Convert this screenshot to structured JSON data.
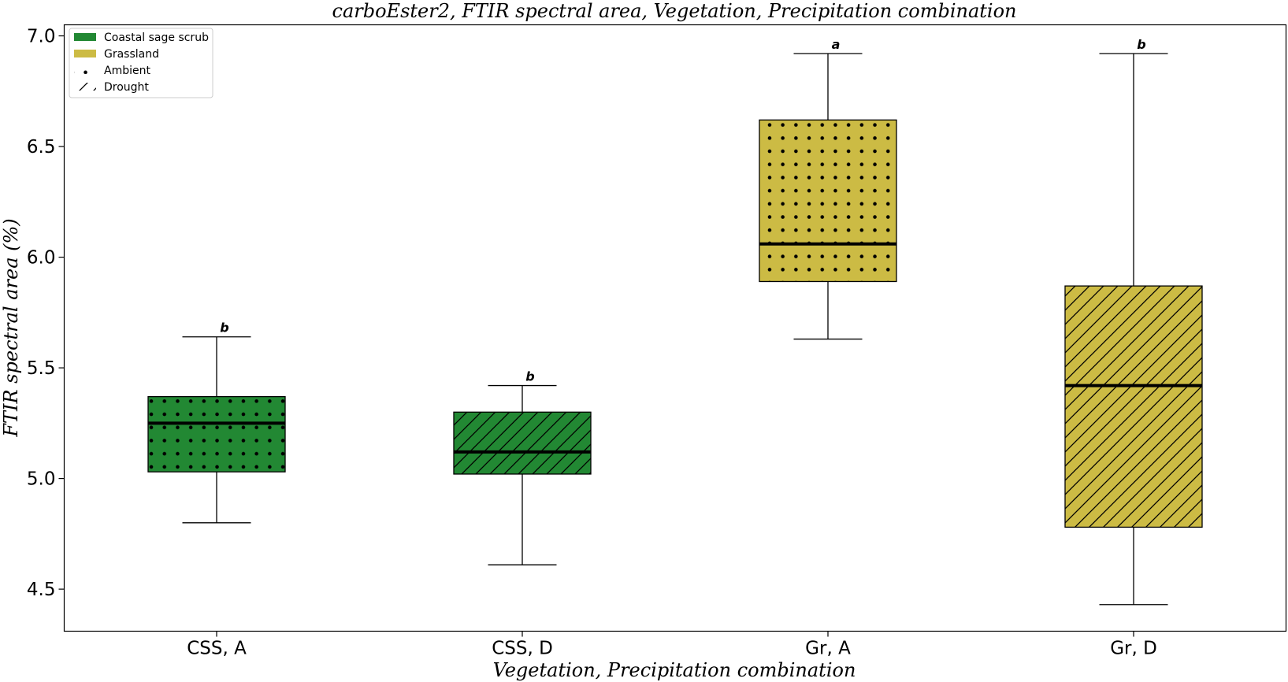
{
  "chart_data": {
    "type": "box",
    "title": "carboEster2, FTIR spectral area, Vegetation, Precipitation combination",
    "xlabel": "Vegetation, Precipitation combination",
    "ylabel": "FTIR spectral area (%)",
    "ylim": [
      4.31,
      7.05
    ],
    "yticks": [
      4.5,
      5.0,
      5.5,
      6.0,
      6.5,
      7.0
    ],
    "ytick_labels": [
      "4.5",
      "5.0",
      "5.5",
      "6.0",
      "6.5",
      "7.0"
    ],
    "grid": false,
    "legend_position": "top-left",
    "categories": [
      "CSS, A",
      "CSS, D",
      "Gr, A",
      "Gr, D"
    ],
    "boxes": [
      {
        "category": "CSS, A",
        "vegetation": "Coastal sage scrub",
        "precipitation": "Ambient",
        "whisker_low": 4.8,
        "q1": 5.03,
        "median": 5.25,
        "q3": 5.37,
        "whisker_high": 5.64,
        "letter": "b"
      },
      {
        "category": "CSS, D",
        "vegetation": "Coastal sage scrub",
        "precipitation": "Drought",
        "whisker_low": 4.61,
        "q1": 5.02,
        "median": 5.12,
        "q3": 5.3,
        "whisker_high": 5.42,
        "letter": "b"
      },
      {
        "category": "Gr, A",
        "vegetation": "Grassland",
        "precipitation": "Ambient",
        "whisker_low": 5.63,
        "q1": 5.89,
        "median": 6.06,
        "q3": 6.62,
        "whisker_high": 6.92,
        "letter": "a"
      },
      {
        "category": "Gr, D",
        "vegetation": "Grassland",
        "precipitation": "Drought",
        "whisker_low": 4.43,
        "q1": 4.78,
        "median": 5.42,
        "q3": 5.87,
        "whisker_high": 6.92,
        "letter": "b"
      }
    ],
    "legend": [
      {
        "label": "Coastal sage scrub",
        "kind": "fill",
        "color": "#228833"
      },
      {
        "label": "Grassland",
        "kind": "fill",
        "color": "#CCBB44"
      },
      {
        "label": "Ambient",
        "kind": "hatch",
        "hatch": "dots"
      },
      {
        "label": "Drought",
        "kind": "hatch",
        "hatch": "diagonal"
      }
    ],
    "colors": {
      "Coastal sage scrub": "#228833",
      "Grassland": "#CCBB44"
    }
  }
}
